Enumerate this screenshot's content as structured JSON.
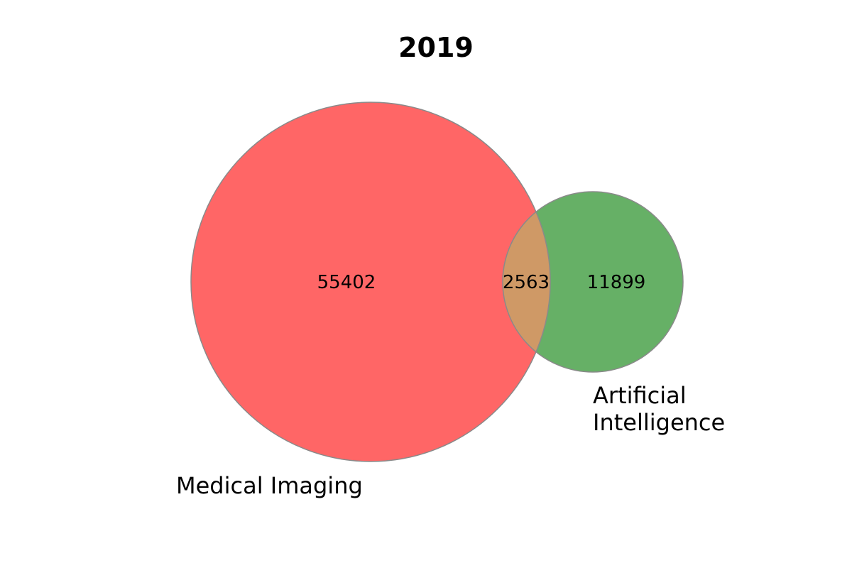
{
  "title": "2019",
  "sets": [
    {
      "name": "Medical Imaging",
      "label_lines": [
        "Medical Imaging"
      ],
      "only_count": "55402",
      "color": "#ff6666"
    },
    {
      "name": "Artificial Intelligence",
      "label_lines": [
        "Artificial",
        "Intelligence"
      ],
      "only_count": "11899",
      "color": "#66b066"
    }
  ],
  "intersection": {
    "count": "2563",
    "color": "#cf9966"
  },
  "outline_color": "#8a8a8a"
}
